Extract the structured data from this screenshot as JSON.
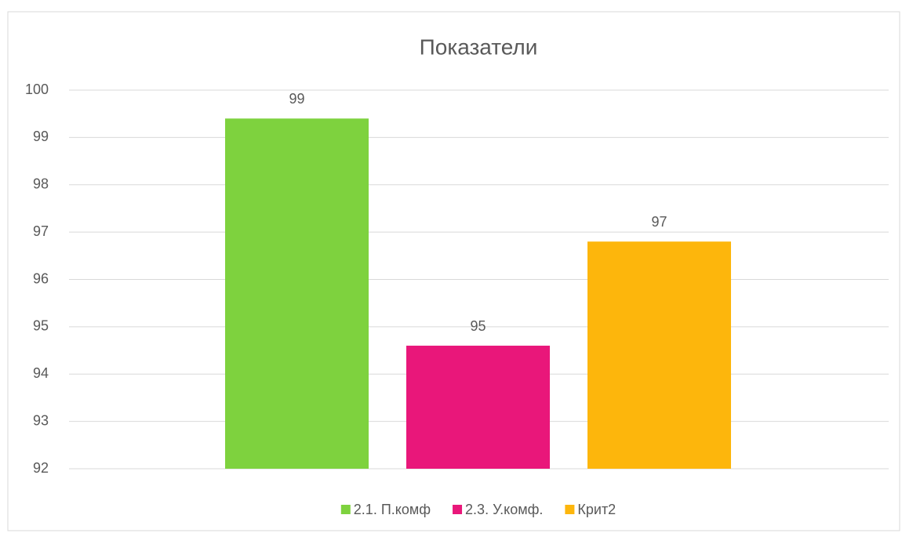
{
  "chart_data": {
    "type": "bar",
    "title": "Показатели",
    "categories": [
      null
    ],
    "series": [
      {
        "name": "2.1. П.комф",
        "color": "#7ed23e",
        "values": [
          99.4
        ],
        "value_labels": [
          "99"
        ]
      },
      {
        "name": "2.3. У.комф.",
        "color": "#e9177a",
        "values": [
          94.6
        ],
        "value_labels": [
          "95"
        ]
      },
      {
        "name": "Крит2",
        "color": "#fdb60c",
        "values": [
          96.8
        ],
        "value_labels": [
          "97"
        ]
      }
    ],
    "ylim": [
      92,
      100
    ],
    "yticks": [
      92,
      93,
      94,
      95,
      96,
      97,
      98,
      99,
      100
    ],
    "grid": true,
    "legend": "bottom"
  }
}
